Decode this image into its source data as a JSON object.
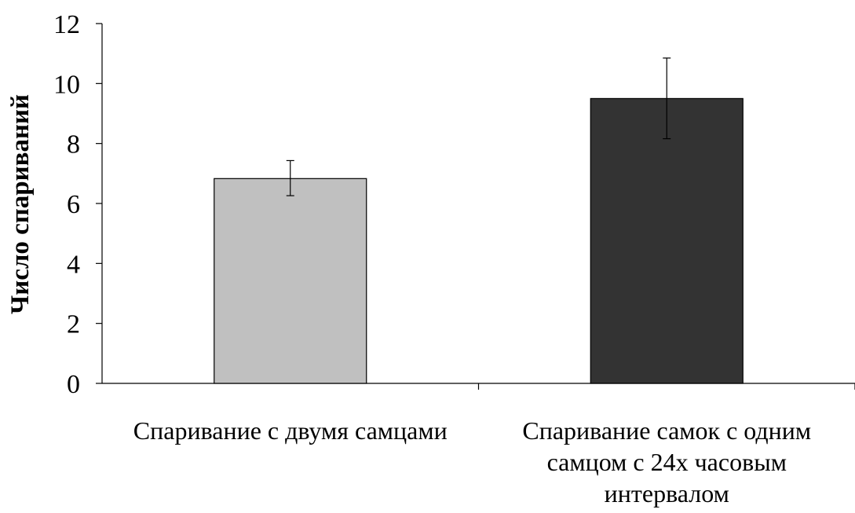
{
  "chart_data": {
    "type": "bar",
    "title": "",
    "xlabel": "",
    "ylabel": "Число спариваний",
    "ylim": [
      0,
      12
    ],
    "yticks": [
      0,
      2,
      4,
      6,
      8,
      10,
      12
    ],
    "grid": false,
    "legend": "none",
    "categories": [
      [
        "Спаривание с двумя самцами"
      ],
      [
        "Спаривание самок с одним",
        "самцом с 24х часовым",
        "интервалом"
      ]
    ],
    "values": [
      6.83,
      9.5
    ],
    "error_bars": [
      {
        "low": 6.26,
        "high": 7.43
      },
      {
        "low": 8.16,
        "high": 10.85
      }
    ],
    "colors": [
      "#c0c0c0",
      "#333333"
    ],
    "edge_color": "#000000"
  }
}
